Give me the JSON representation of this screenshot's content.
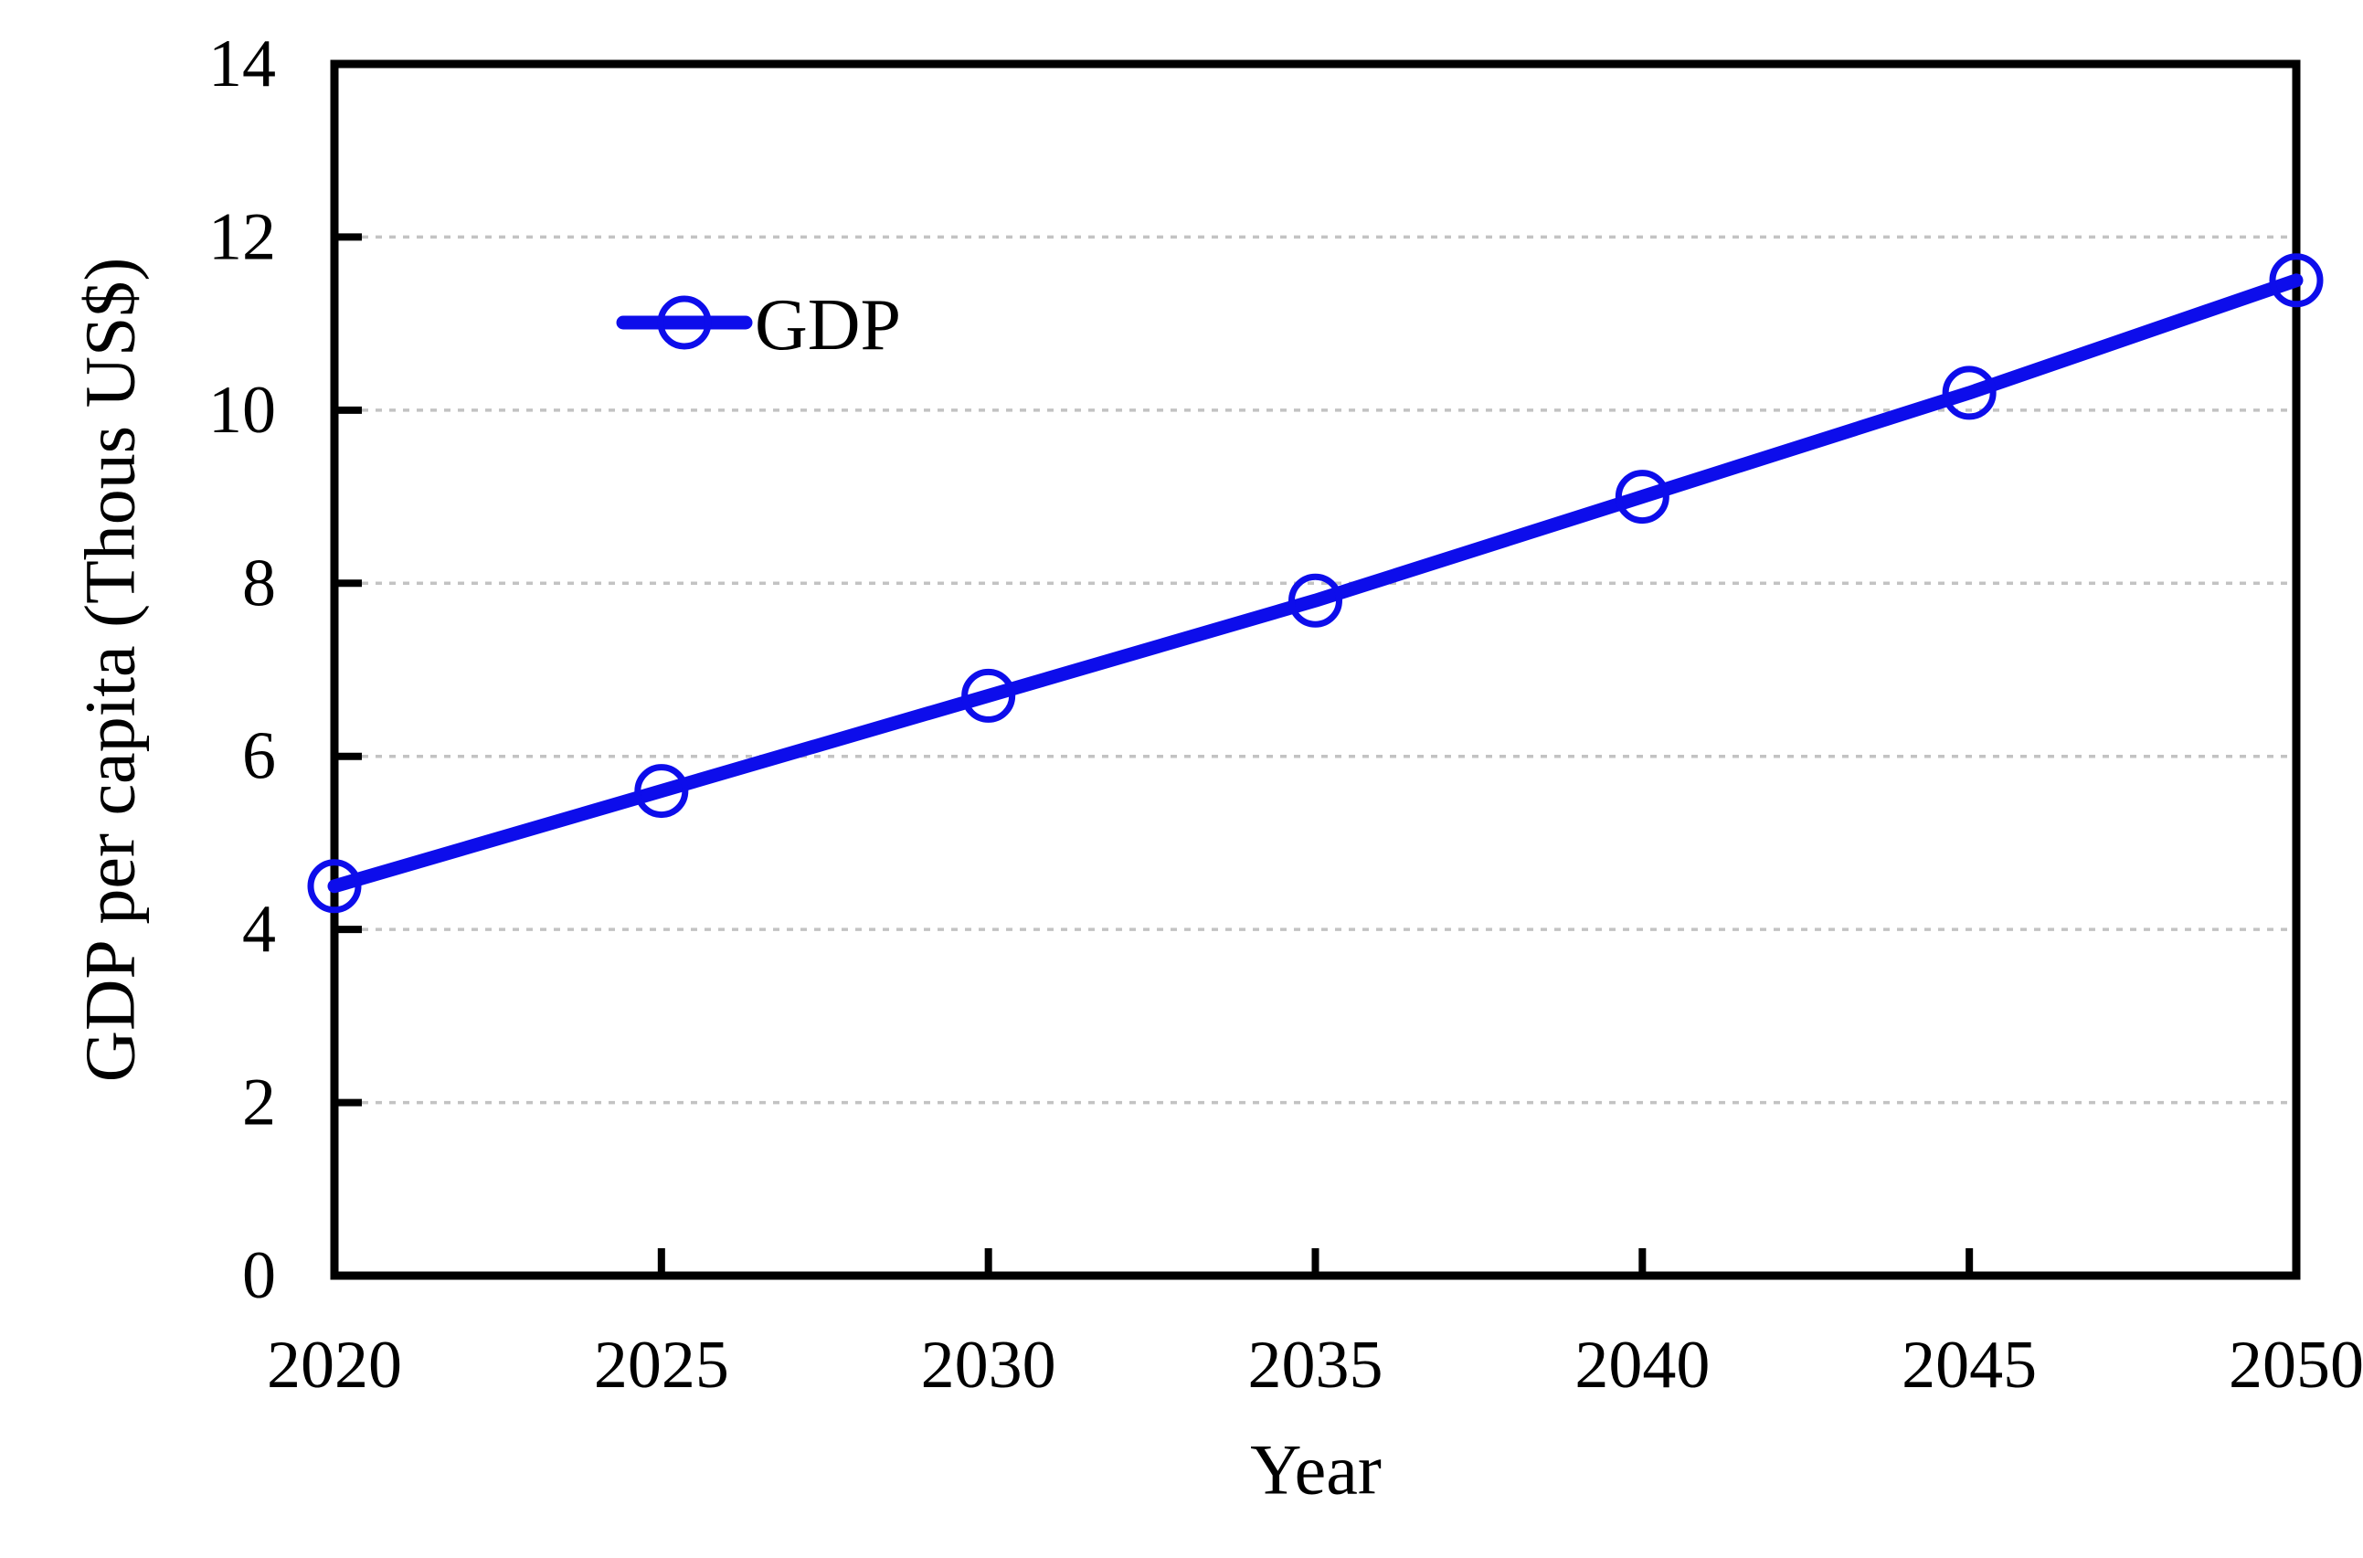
{
  "figure": {
    "background": "#ffffff",
    "title": ""
  },
  "chart_data": {
    "type": "line",
    "title": "",
    "xlabel": "Year",
    "ylabel": "GDP per capita (Thous US$)",
    "x": [
      2020,
      2025,
      2030,
      2035,
      2040,
      2045,
      2050
    ],
    "xtick_labels": [
      "2020",
      "2025",
      "2030",
      "2035",
      "2040",
      "2045",
      "2050"
    ],
    "ylim": [
      0,
      14
    ],
    "ytick_step": 2,
    "ytick_labels": [
      "0",
      "2",
      "4",
      "6",
      "8",
      "10",
      "12",
      "14"
    ],
    "series": [
      {
        "name": "GDP",
        "values": [
          4.5,
          5.6,
          6.7,
          7.8,
          9.0,
          10.2,
          11.5
        ],
        "color": "#0d0deb",
        "marker": "open-circle"
      }
    ],
    "grid": {
      "horizontal": true,
      "vertical": false,
      "style": "dotted",
      "color": "#c3c3c3"
    },
    "legend": {
      "position": "inside-upper-left",
      "box": false,
      "entries": [
        "GDP"
      ]
    },
    "axis_color": "#000000"
  }
}
